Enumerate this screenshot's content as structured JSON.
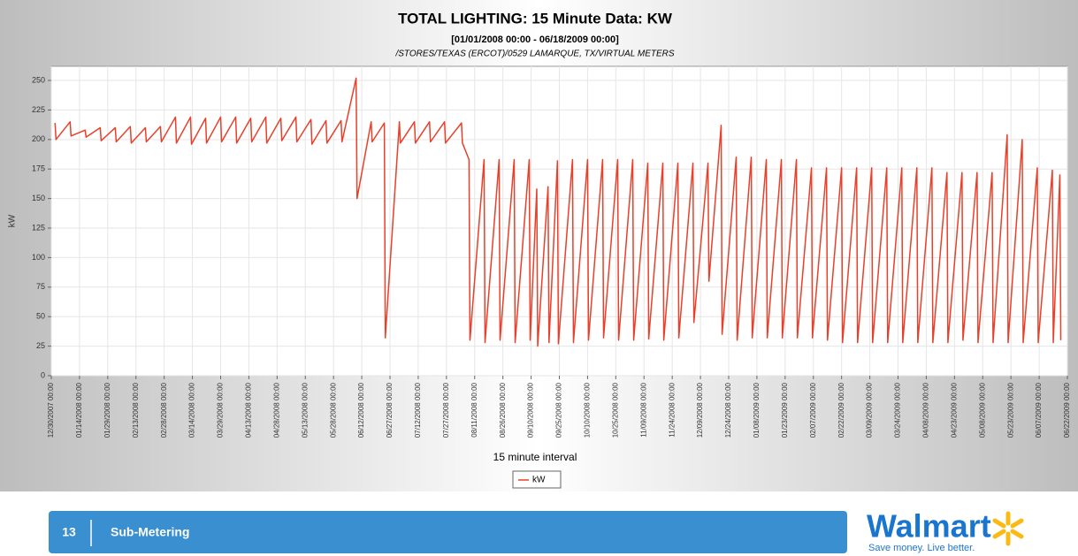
{
  "chart_data": {
    "type": "line",
    "title": "TOTAL LIGHTING: 15 Minute Data: KW",
    "subtitle": "[01/01/2008 00:00 - 06/18/2009 00:00]",
    "subtitle2": "/STORES/TEXAS (ERCOT)/0529 LAMARQUE, TX/VIRTUAL METERS",
    "xlabel": "15 minute interval",
    "ylabel": "kW",
    "grid": true,
    "legend": "bottom",
    "xlim": [
      "12/30/2007 00:00",
      "06/22/2009 00:00"
    ],
    "xticks": [
      "12/30/2007 00:00",
      "01/14/2008 00:00",
      "01/29/2008 00:00",
      "02/13/2008 00:00",
      "02/28/2008 00:00",
      "03/14/2008 00:00",
      "03/29/2008 00:00",
      "04/13/2008 00:00",
      "04/28/2008 00:00",
      "05/13/2008 00:00",
      "05/28/2008 00:00",
      "06/12/2008 00:00",
      "06/27/2008 00:00",
      "07/12/2008 00:00",
      "07/27/2008 00:00",
      "08/11/2008 00:00",
      "08/26/2008 00:00",
      "09/10/2008 00:00",
      "09/25/2008 00:00",
      "10/10/2008 00:00",
      "10/25/2008 00:00",
      "11/09/2008 00:00",
      "11/24/2008 00:00",
      "12/09/2008 00:00",
      "12/24/2008 00:00",
      "01/08/2009 00:00",
      "01/23/2009 00:00",
      "02/07/2009 00:00",
      "02/22/2009 00:00",
      "03/09/2009 00:00",
      "03/24/2009 00:00",
      "04/08/2009 00:00",
      "04/23/2009 00:00",
      "05/08/2009 00:00",
      "05/23/2009 00:00",
      "06/07/2009 00:00",
      "06/22/2009 00:00"
    ],
    "ylim": [
      0,
      262
    ],
    "yticks": [
      0,
      25,
      50,
      75,
      100,
      125,
      150,
      175,
      200,
      225,
      250
    ],
    "x": [
      "01/01/2008 00:00",
      "01/01/2008 12:00",
      "01/09/2008 00:00",
      "01/09/2008 12:00",
      "01/17/2008 00:00",
      "01/17/2008 12:00",
      "01/25/2008 00:00",
      "01/25/2008 12:00",
      "02/02/2008 00:00",
      "02/02/2008 12:00",
      "02/10/2008 00:00",
      "02/10/2008 12:00",
      "02/18/2008 00:00",
      "02/18/2008 12:00",
      "02/26/2008 00:00",
      "02/26/2008 12:00",
      "03/05/2008 00:00",
      "03/05/2008 12:00",
      "03/13/2008 00:00",
      "03/13/2008 12:00",
      "03/21/2008 00:00",
      "03/21/2008 12:00",
      "03/29/2008 00:00",
      "03/29/2008 12:00",
      "04/06/2008 00:00",
      "04/06/2008 12:00",
      "04/14/2008 00:00",
      "04/14/2008 12:00",
      "04/22/2008 00:00",
      "04/22/2008 12:00",
      "04/30/2008 00:00",
      "04/30/2008 12:00",
      "05/08/2008 00:00",
      "05/08/2008 12:00",
      "05/16/2008 00:00",
      "05/16/2008 12:00",
      "05/24/2008 00:00",
      "05/24/2008 12:00",
      "06/01/2008 00:00",
      "06/01/2008 12:00",
      "06/09/2008 00:00",
      "06/09/2008 12:00",
      "06/17/2008 00:00",
      "06/17/2008 12:00",
      "06/24/2008 00:00",
      "06/24/2008 12:00",
      "07/02/2008 00:00",
      "07/02/2008 12:00",
      "07/10/2008 00:00",
      "07/10/2008 12:00",
      "07/18/2008 00:00",
      "07/18/2008 12:00",
      "07/26/2008 00:00",
      "07/26/2008 12:00",
      "08/04/2008 00:00",
      "08/04/2008 12:00",
      "08/08/2008 00:00",
      "08/08/2008 12:00",
      "08/16/2008 00:00",
      "08/16/2008 12:00",
      "08/24/2008 00:00",
      "08/24/2008 12:00",
      "09/01/2008 00:00",
      "09/01/2008 12:00",
      "09/09/2008 00:00",
      "09/09/2008 12:00",
      "09/13/2008 00:00",
      "09/13/2008 12:00",
      "09/19/2008 00:00",
      "09/19/2008 12:00",
      "09/24/2008 00:00",
      "09/24/2008 12:00",
      "10/02/2008 00:00",
      "10/02/2008 12:00",
      "10/10/2008 00:00",
      "10/10/2008 12:00",
      "10/18/2008 00:00",
      "10/18/2008 12:00",
      "10/26/2008 00:00",
      "10/26/2008 12:00",
      "11/03/2008 00:00",
      "11/03/2008 12:00",
      "11/11/2008 00:00",
      "11/11/2008 12:00",
      "11/19/2008 00:00",
      "11/19/2008 12:00",
      "11/27/2008 00:00",
      "11/27/2008 12:00",
      "12/05/2008 00:00",
      "12/05/2008 12:00",
      "12/13/2008 00:00",
      "12/13/2008 12:00",
      "12/20/2008 00:00",
      "12/20/2008 12:00",
      "12/28/2008 00:00",
      "12/28/2008 12:00",
      "01/05/2009 00:00",
      "01/05/2009 12:00",
      "01/13/2009 00:00",
      "01/13/2009 12:00",
      "01/21/2009 00:00",
      "01/21/2009 12:00",
      "01/29/2009 00:00",
      "01/29/2009 12:00",
      "02/06/2009 00:00",
      "02/06/2009 12:00",
      "02/14/2009 00:00",
      "02/14/2009 12:00",
      "02/22/2009 00:00",
      "02/22/2009 12:00",
      "03/02/2009 00:00",
      "03/02/2009 12:00",
      "03/10/2009 00:00",
      "03/10/2009 12:00",
      "03/18/2009 00:00",
      "03/18/2009 12:00",
      "03/26/2009 00:00",
      "03/26/2009 12:00",
      "04/03/2009 00:00",
      "04/03/2009 12:00",
      "04/11/2009 00:00",
      "04/11/2009 12:00",
      "04/19/2009 00:00",
      "04/19/2009 12:00",
      "04/27/2009 00:00",
      "04/27/2009 12:00",
      "05/05/2009 00:00",
      "05/05/2009 12:00",
      "05/13/2009 00:00",
      "05/13/2009 12:00",
      "05/21/2009 00:00",
      "05/21/2009 12:00",
      "05/29/2009 00:00",
      "05/29/2009 12:00",
      "06/06/2009 00:00",
      "06/06/2009 12:00",
      "06/14/2009 00:00",
      "06/14/2009 12:00",
      "06/18/2009 00:00",
      "06/18/2009 12:00"
    ],
    "series": [
      {
        "name": "kW",
        "color": "#e8402a",
        "values": [
          214,
          200,
          215,
          203,
          208,
          202,
          210,
          199,
          210,
          198,
          211,
          197,
          210,
          198,
          211,
          198,
          219,
          197,
          219,
          196,
          218,
          197,
          219,
          198,
          219,
          197,
          218,
          198,
          219,
          197,
          218,
          199,
          219,
          198,
          217,
          196,
          216,
          197,
          216,
          198,
          252,
          150,
          215,
          198,
          214,
          32,
          215,
          197,
          215,
          197,
          215,
          198,
          215,
          197,
          214,
          197,
          183,
          30,
          183,
          28,
          183,
          30,
          183,
          28,
          183,
          30,
          158,
          25,
          160,
          28,
          182,
          27,
          183,
          28,
          183,
          30,
          183,
          32,
          183,
          30,
          183,
          30,
          180,
          31,
          180,
          30,
          180,
          32,
          180,
          45,
          180,
          80,
          212,
          35,
          185,
          30,
          185,
          32,
          183,
          32,
          183,
          32,
          183,
          32,
          176,
          32,
          176,
          30,
          176,
          28,
          176,
          28,
          176,
          28,
          176,
          28,
          176,
          28,
          176,
          28,
          176,
          28,
          172,
          28,
          172,
          30,
          172,
          28,
          172,
          28,
          204,
          28,
          200,
          28,
          176,
          28,
          174,
          28,
          170,
          30
        ]
      }
    ]
  },
  "footer": {
    "page_number": "13",
    "title": "Sub-Metering"
  },
  "logo": {
    "name": "Walmart",
    "tagline": "Save money. Live better."
  }
}
